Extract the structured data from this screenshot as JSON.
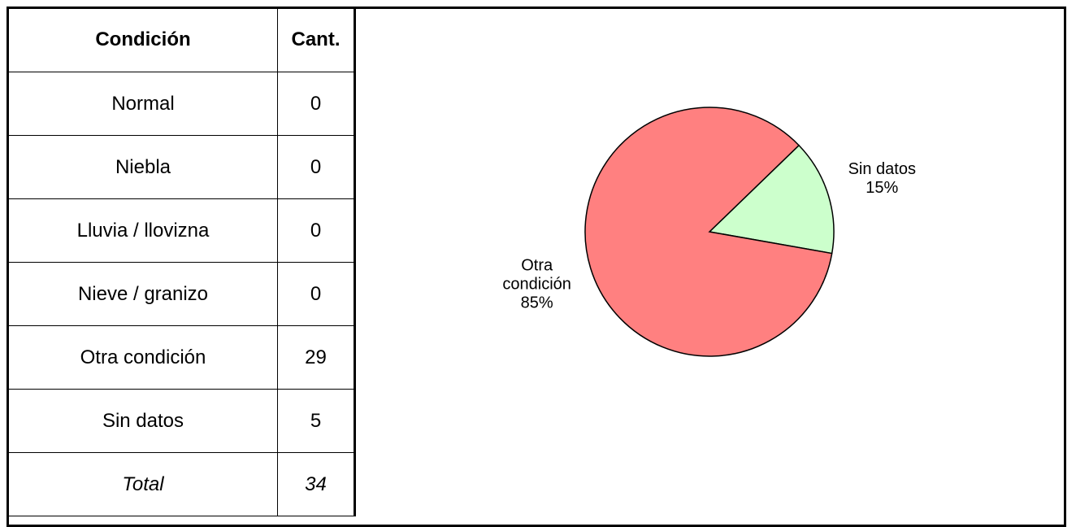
{
  "table": {
    "header": [
      "Condición",
      "Cant."
    ],
    "rows": [
      [
        "Normal",
        0
      ],
      [
        "Niebla",
        0
      ],
      [
        "Lluvia / llovizna",
        0
      ],
      [
        "Nieve / granizo",
        0
      ],
      [
        "Otra condición",
        29
      ],
      [
        "Sin datos",
        5
      ]
    ],
    "total": [
      "Total",
      34
    ]
  },
  "chart_data": {
    "type": "pie",
    "categories": [
      "Otra condición",
      "Sin datos"
    ],
    "values": [
      85,
      15
    ],
    "value_labels": [
      "85%",
      "15%"
    ],
    "colors": [
      "#ff8080",
      "#ccffcc"
    ]
  }
}
